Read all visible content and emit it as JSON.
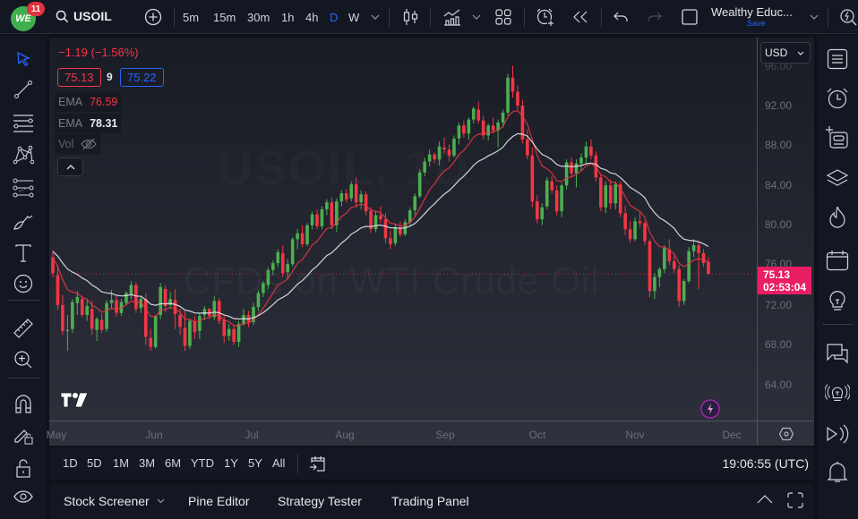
{
  "header": {
    "logo_text": "WE",
    "notification_count": "11",
    "symbol": "USOIL",
    "timeframes": [
      {
        "label": "5m",
        "active": false
      },
      {
        "label": "15m",
        "active": false
      },
      {
        "label": "30m",
        "active": false
      },
      {
        "label": "1h",
        "active": false
      },
      {
        "label": "4h",
        "active": false
      },
      {
        "label": "D",
        "active": true
      },
      {
        "label": "W",
        "active": false
      }
    ],
    "layout_name": "Wealthy Educ...",
    "save_label": "Save",
    "icons": [
      "add-symbol-icon",
      "timeframe-chevron-icon",
      "candles-icon",
      "indicators-icon",
      "indicators-chevron-icon",
      "templates-icon",
      "alert-icon",
      "replay-icon",
      "undo-icon",
      "redo-icon",
      "fullscreen-box-icon",
      "layout-chevron-icon",
      "quick-search-icon"
    ]
  },
  "legend": {
    "change": "−1.19 (−1.56%)",
    "bid": "75.13",
    "spread": "9",
    "ask": "75.22",
    "indicators": [
      {
        "name": "EMA",
        "value": "76.59",
        "color": "#f23645"
      },
      {
        "name": "EMA",
        "value": "78.31",
        "color": "#e6e8ec"
      },
      {
        "name": "Vol",
        "value": "",
        "hidden": true
      }
    ]
  },
  "watermark": {
    "line1": "USOIL, 1D",
    "line2": "CFDs on WTI Crude Oil"
  },
  "price_axis": {
    "currency": "USD",
    "ticks": [
      "96.00",
      "92.00",
      "88.00",
      "84.00",
      "80.00",
      "76.00",
      "72.00",
      "68.00",
      "64.00"
    ],
    "last_price": "75.13",
    "countdown": "02:53:04",
    "last_price_color": "#e91e63"
  },
  "time_axis": {
    "ticks": [
      "May",
      "Jun",
      "Jul",
      "Aug",
      "Sep",
      "Oct",
      "Nov",
      "Dec"
    ]
  },
  "bottom_bar": {
    "ranges": [
      "1D",
      "5D",
      "1M",
      "3M",
      "6M",
      "YTD",
      "1Y",
      "5Y",
      "All"
    ],
    "clock": "19:06:55 (UTC)"
  },
  "panel_bar": {
    "tabs": [
      "Stock Screener",
      "Pine Editor",
      "Strategy Tester",
      "Trading Panel"
    ]
  },
  "left_toolbar": [
    "cursor-icon",
    "trendline-icon",
    "fib-icon",
    "pattern-icon",
    "prediction-icon",
    "brush-icon",
    "text-icon",
    "emoji-icon",
    "ruler-icon",
    "zoom-in-icon",
    "magnet-icon",
    "lock-drawing-icon",
    "lock-icon",
    "eye-icon"
  ],
  "right_toolbar": [
    "watchlist-icon",
    "alarm-clock-icon",
    "add-watchlist-icon",
    "layers-icon",
    "hotlist-icon",
    "calendar-icon",
    "ideas-icon",
    "chat-icon",
    "streams-icon",
    "play-broadcast-icon",
    "bell-icon"
  ],
  "colors": {
    "up": "#4caf50",
    "down": "#f23645",
    "accent": "#2962ff",
    "ema_fast": "#f23645",
    "ema_slow": "#e6e8ec"
  },
  "chart_data": {
    "type": "candlestick",
    "title": "USOIL, 1D",
    "subtitle": "CFDs on WTI Crude Oil",
    "ylim": [
      61.5,
      96.5
    ],
    "last": 75.13,
    "x_labels": [
      "May",
      "Jun",
      "Jul",
      "Aug",
      "Sep",
      "Oct",
      "Nov",
      "Dec"
    ],
    "candles": [
      [
        76.8,
        77.4,
        74.8,
        75.2
      ],
      [
        75.0,
        76.0,
        71.5,
        72.0
      ],
      [
        72.0,
        73.0,
        69.0,
        69.4
      ],
      [
        69.4,
        71.0,
        67.4,
        69.5
      ],
      [
        69.6,
        72.6,
        69.2,
        72.3
      ],
      [
        72.2,
        73.4,
        71.0,
        72.8
      ],
      [
        72.6,
        72.9,
        70.8,
        71.0
      ],
      [
        71.0,
        72.5,
        70.4,
        71.9
      ],
      [
        71.6,
        72.4,
        69.0,
        69.6
      ],
      [
        69.5,
        70.8,
        68.4,
        70.6
      ],
      [
        70.5,
        71.1,
        69.2,
        69.5
      ],
      [
        69.6,
        72.5,
        69.3,
        72.2
      ],
      [
        72.2,
        73.5,
        71.6,
        72.5
      ],
      [
        72.5,
        72.9,
        70.8,
        71.2
      ],
      [
        71.2,
        72.6,
        70.9,
        72.3
      ],
      [
        72.2,
        73.4,
        72.0,
        73.2
      ],
      [
        73.1,
        74.4,
        72.6,
        74.0
      ],
      [
        74.0,
        74.3,
        71.2,
        71.6
      ],
      [
        71.7,
        72.8,
        71.2,
        72.6
      ],
      [
        72.6,
        73.2,
        68.0,
        68.8
      ],
      [
        68.7,
        69.6,
        67.4,
        67.8
      ],
      [
        67.8,
        71.0,
        67.6,
        70.9
      ],
      [
        71.0,
        74.2,
        70.6,
        73.8
      ],
      [
        73.6,
        74.0,
        71.3,
        71.9
      ],
      [
        72.0,
        73.3,
        71.6,
        72.6
      ],
      [
        72.5,
        73.6,
        69.6,
        71.1
      ],
      [
        71.0,
        71.6,
        69.0,
        69.8
      ],
      [
        69.7,
        71.4,
        67.4,
        67.9
      ],
      [
        67.9,
        70.6,
        67.6,
        70.4
      ],
      [
        70.3,
        70.9,
        68.6,
        69.3
      ],
      [
        69.4,
        71.2,
        68.6,
        70.9
      ],
      [
        71.0,
        71.9,
        70.5,
        71.6
      ],
      [
        71.6,
        71.7,
        70.6,
        70.9
      ],
      [
        70.8,
        72.9,
        70.5,
        72.4
      ],
      [
        72.4,
        72.7,
        70.1,
        70.4
      ],
      [
        70.5,
        70.9,
        68.2,
        68.9
      ],
      [
        68.9,
        70.1,
        68.4,
        69.6
      ],
      [
        69.6,
        70.0,
        68.0,
        68.3
      ],
      [
        68.3,
        70.4,
        67.8,
        70.1
      ],
      [
        70.1,
        71.6,
        69.9,
        71.0
      ],
      [
        71.0,
        71.4,
        69.8,
        70.3
      ],
      [
        70.3,
        72.2,
        70.0,
        71.8
      ],
      [
        71.8,
        73.5,
        71.4,
        73.2
      ],
      [
        73.2,
        74.4,
        72.8,
        74.2
      ],
      [
        74.0,
        75.8,
        73.6,
        75.5
      ],
      [
        75.5,
        76.5,
        75.0,
        76.2
      ],
      [
        76.2,
        77.6,
        75.8,
        77.3
      ],
      [
        77.2,
        78.0,
        74.8,
        75.2
      ],
      [
        75.3,
        76.6,
        74.6,
        76.1
      ],
      [
        76.1,
        78.8,
        75.9,
        78.6
      ],
      [
        78.6,
        79.6,
        77.6,
        79.2
      ],
      [
        79.2,
        80.0,
        77.8,
        78.1
      ],
      [
        78.1,
        80.2,
        77.9,
        80.0
      ],
      [
        80.0,
        81.4,
        79.6,
        81.1
      ],
      [
        81.1,
        81.6,
        79.6,
        79.9
      ],
      [
        79.9,
        81.9,
        79.6,
        81.6
      ],
      [
        81.6,
        82.6,
        81.0,
        82.3
      ],
      [
        82.3,
        82.8,
        79.6,
        80.0
      ],
      [
        80.0,
        82.7,
        79.3,
        82.4
      ],
      [
        82.4,
        83.5,
        81.9,
        83.2
      ],
      [
        83.2,
        83.6,
        82.3,
        82.6
      ],
      [
        82.7,
        84.4,
        82.4,
        84.1
      ],
      [
        84.1,
        84.8,
        81.8,
        82.3
      ],
      [
        82.3,
        83.5,
        81.6,
        83.1
      ],
      [
        83.1,
        83.4,
        81.0,
        81.4
      ],
      [
        81.4,
        81.8,
        79.2,
        79.6
      ],
      [
        79.6,
        81.4,
        79.3,
        81.0
      ],
      [
        81.0,
        81.9,
        80.2,
        80.6
      ],
      [
        80.6,
        81.2,
        78.2,
        78.7
      ],
      [
        78.7,
        79.4,
        77.6,
        78.1
      ],
      [
        78.2,
        80.1,
        77.9,
        79.8
      ],
      [
        79.8,
        80.4,
        78.8,
        79.1
      ],
      [
        79.1,
        80.6,
        78.9,
        80.3
      ],
      [
        80.3,
        81.8,
        80.0,
        81.5
      ],
      [
        81.5,
        83.2,
        81.0,
        82.9
      ],
      [
        82.9,
        85.6,
        82.7,
        85.3
      ],
      [
        85.3,
        86.8,
        84.9,
        86.4
      ],
      [
        86.4,
        87.6,
        85.9,
        87.1
      ],
      [
        87.1,
        87.3,
        86.2,
        86.6
      ],
      [
        86.6,
        88.4,
        86.0,
        87.9
      ],
      [
        87.8,
        88.8,
        87.2,
        87.6
      ],
      [
        87.6,
        88.1,
        86.4,
        87.0
      ],
      [
        87.0,
        89.0,
        86.8,
        88.7
      ],
      [
        88.7,
        90.3,
        88.1,
        90.0
      ],
      [
        90.0,
        90.5,
        88.8,
        89.2
      ],
      [
        89.2,
        90.8,
        88.6,
        90.6
      ],
      [
        90.6,
        91.9,
        90.2,
        91.7
      ],
      [
        91.6,
        92.4,
        90.2,
        90.5
      ],
      [
        90.5,
        91.0,
        88.6,
        89.0
      ],
      [
        89.0,
        90.2,
        88.5,
        90.0
      ],
      [
        90.0,
        90.8,
        89.2,
        89.5
      ],
      [
        89.5,
        90.6,
        87.8,
        90.3
      ],
      [
        90.3,
        91.6,
        89.8,
        91.3
      ],
      [
        91.3,
        95.2,
        91.0,
        94.8
      ],
      [
        94.8,
        96.0,
        92.8,
        93.4
      ],
      [
        93.4,
        94.0,
        91.6,
        92.0
      ],
      [
        92.0,
        92.6,
        88.2,
        88.6
      ],
      [
        88.6,
        89.6,
        86.6,
        87.0
      ],
      [
        87.0,
        87.8,
        81.8,
        82.4
      ],
      [
        82.4,
        83.0,
        80.2,
        80.6
      ],
      [
        80.6,
        82.2,
        80.0,
        81.8
      ],
      [
        81.9,
        84.8,
        81.6,
        84.5
      ],
      [
        84.4,
        84.9,
        83.2,
        83.5
      ],
      [
        83.5,
        84.0,
        81.0,
        81.4
      ],
      [
        81.4,
        84.2,
        80.8,
        84.0
      ],
      [
        84.0,
        86.6,
        83.6,
        86.3
      ],
      [
        86.3,
        86.8,
        84.8,
        85.2
      ],
      [
        85.2,
        86.6,
        83.8,
        86.2
      ],
      [
        86.2,
        87.2,
        85.4,
        86.8
      ],
      [
        86.8,
        88.4,
        86.2,
        87.9
      ],
      [
        87.9,
        88.6,
        86.6,
        87.0
      ],
      [
        87.0,
        87.4,
        84.4,
        84.8
      ],
      [
        84.8,
        85.1,
        81.4,
        81.8
      ],
      [
        81.8,
        84.4,
        81.2,
        84.0
      ],
      [
        84.0,
        84.6,
        81.6,
        82.2
      ],
      [
        82.2,
        84.4,
        81.6,
        84.1
      ],
      [
        84.1,
        84.4,
        80.8,
        81.2
      ],
      [
        81.2,
        82.0,
        79.0,
        79.6
      ],
      [
        79.6,
        80.4,
        78.2,
        78.6
      ],
      [
        78.6,
        80.8,
        78.4,
        80.4
      ],
      [
        80.4,
        81.4,
        79.8,
        80.2
      ],
      [
        80.2,
        80.4,
        78.0,
        78.4
      ],
      [
        78.4,
        78.6,
        72.8,
        73.4
      ],
      [
        73.4,
        75.2,
        72.6,
        74.8
      ],
      [
        74.8,
        75.8,
        73.8,
        75.6
      ],
      [
        75.6,
        78.0,
        75.2,
        77.7
      ],
      [
        77.6,
        78.6,
        76.0,
        76.4
      ],
      [
        76.4,
        77.0,
        75.2,
        75.6
      ],
      [
        75.6,
        76.0,
        71.8,
        72.4
      ],
      [
        72.4,
        74.6,
        72.0,
        74.4
      ],
      [
        74.4,
        77.8,
        74.2,
        77.4
      ],
      [
        77.4,
        78.6,
        76.8,
        78.0
      ],
      [
        78.0,
        78.4,
        73.6,
        77.2
      ],
      [
        77.2,
        77.6,
        75.8,
        76.2
      ],
      [
        76.3,
        76.8,
        75.0,
        75.13
      ]
    ],
    "series": [
      {
        "name": "EMA (fast)",
        "color": "#f23645",
        "last": 76.59
      },
      {
        "name": "EMA (slow)",
        "color": "#e6e8ec",
        "last": 78.31
      }
    ]
  }
}
